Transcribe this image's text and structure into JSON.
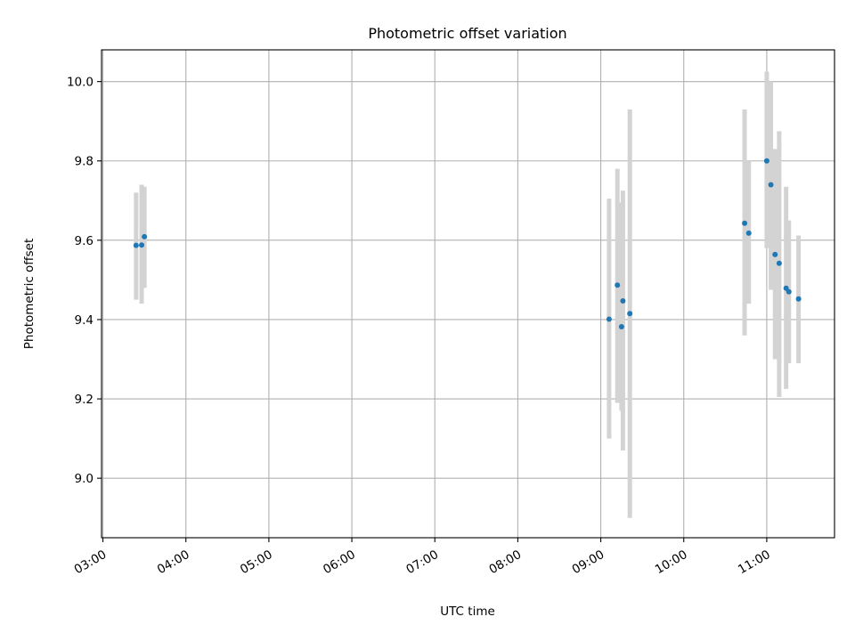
{
  "chart_data": {
    "type": "scatter",
    "title": "Photometric offset variation",
    "xlabel": "UTC time",
    "ylabel": "Photometric offset",
    "xlim": [
      "02:59",
      "11:49"
    ],
    "ylim": [
      8.85,
      10.08
    ],
    "x_ticks": [
      "03:00",
      "04:00",
      "05:00",
      "06:00",
      "07:00",
      "08:00",
      "09:00",
      "10:00",
      "11:00"
    ],
    "y_ticks": [
      "9.0",
      "9.2",
      "9.4",
      "9.6",
      "9.8",
      "10.0"
    ],
    "grid": true,
    "colors": {
      "points": "#1f77b4",
      "errorbars": "#d3d3d3"
    },
    "points": [
      {
        "x": "03:24",
        "y": 9.587,
        "ylo": 9.45,
        "yhi": 9.72
      },
      {
        "x": "03:28",
        "y": 9.588,
        "ylo": 9.44,
        "yhi": 9.74
      },
      {
        "x": "03:30",
        "y": 9.609,
        "ylo": 9.48,
        "yhi": 9.735
      },
      {
        "x": "09:06",
        "y": 9.401,
        "ylo": 9.1,
        "yhi": 9.705
      },
      {
        "x": "09:12",
        "y": 9.487,
        "ylo": 9.19,
        "yhi": 9.78
      },
      {
        "x": "09:15",
        "y": 9.382,
        "ylo": 9.17,
        "yhi": 9.695
      },
      {
        "x": "09:16",
        "y": 9.447,
        "ylo": 9.07,
        "yhi": 9.725
      },
      {
        "x": "09:21",
        "y": 9.415,
        "ylo": 8.9,
        "yhi": 9.93
      },
      {
        "x": "10:44",
        "y": 9.643,
        "ylo": 9.36,
        "yhi": 9.93
      },
      {
        "x": "10:47",
        "y": 9.618,
        "ylo": 9.44,
        "yhi": 9.8
      },
      {
        "x": "11:00",
        "y": 9.8,
        "ylo": 9.58,
        "yhi": 10.025
      },
      {
        "x": "11:03",
        "y": 9.74,
        "ylo": 9.475,
        "yhi": 10.0
      },
      {
        "x": "11:06",
        "y": 9.564,
        "ylo": 9.3,
        "yhi": 9.83
      },
      {
        "x": "11:09",
        "y": 9.542,
        "ylo": 9.205,
        "yhi": 9.875
      },
      {
        "x": "11:14",
        "y": 9.479,
        "ylo": 9.225,
        "yhi": 9.735
      },
      {
        "x": "11:16",
        "y": 9.47,
        "ylo": 9.29,
        "yhi": 9.65
      },
      {
        "x": "11:23",
        "y": 9.452,
        "ylo": 9.29,
        "yhi": 9.612
      }
    ]
  }
}
